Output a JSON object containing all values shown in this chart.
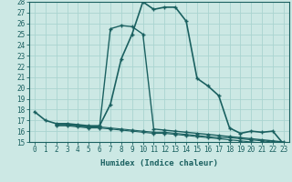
{
  "xlabel": "Humidex (Indice chaleur)",
  "bg_color": "#cce8e4",
  "grid_color": "#aad4d0",
  "line_color": "#1a6060",
  "xlim": [
    -0.5,
    23.5
  ],
  "ylim": [
    15,
    28
  ],
  "xticks": [
    0,
    1,
    2,
    3,
    4,
    5,
    6,
    7,
    8,
    9,
    10,
    11,
    12,
    13,
    14,
    15,
    16,
    17,
    18,
    19,
    20,
    21,
    22,
    23
  ],
  "yticks": [
    15,
    16,
    17,
    18,
    19,
    20,
    21,
    22,
    23,
    24,
    25,
    26,
    27,
    28
  ],
  "curve1_x": [
    0,
    1,
    2,
    3,
    4,
    5,
    6,
    7,
    8,
    9,
    10,
    11,
    12,
    13,
    14,
    15,
    16,
    17,
    18,
    19,
    20,
    21,
    22,
    23
  ],
  "curve1_y": [
    17.8,
    17.0,
    16.7,
    16.7,
    16.6,
    16.5,
    16.5,
    18.5,
    22.7,
    25.0,
    28.0,
    27.3,
    27.5,
    27.5,
    26.2,
    20.9,
    20.2,
    19.3,
    16.3,
    15.8,
    16.0,
    15.9,
    16.0,
    14.8
  ],
  "curve2_x": [
    2,
    3,
    4,
    5,
    6,
    7,
    8,
    9,
    10,
    11,
    12,
    13,
    14,
    15,
    16,
    17,
    18,
    19,
    20,
    21,
    22,
    23
  ],
  "curve2_y": [
    16.6,
    16.6,
    16.5,
    16.4,
    16.4,
    25.5,
    25.8,
    25.7,
    25.0,
    16.2,
    16.1,
    16.0,
    15.9,
    15.8,
    15.7,
    15.6,
    15.5,
    15.4,
    15.3,
    15.2,
    15.1,
    15.0
  ],
  "curve3_x": [
    2,
    3,
    4,
    5,
    6,
    7,
    8,
    9,
    10,
    11,
    12,
    13,
    14,
    15,
    16,
    17,
    18,
    19,
    20,
    21,
    22,
    23
  ],
  "curve3_y": [
    16.6,
    16.6,
    16.5,
    16.4,
    16.4,
    16.3,
    16.2,
    16.1,
    16.0,
    15.9,
    15.9,
    15.8,
    15.7,
    15.6,
    15.5,
    15.4,
    15.4,
    15.3,
    15.2,
    15.1,
    15.0,
    14.9
  ],
  "curve4_x": [
    2,
    3,
    4,
    5,
    6,
    7,
    8,
    9,
    10,
    11,
    12,
    13,
    14,
    15,
    16,
    17,
    18,
    19,
    20,
    21,
    22,
    23
  ],
  "curve4_y": [
    16.5,
    16.5,
    16.4,
    16.3,
    16.3,
    16.2,
    16.1,
    16.0,
    15.9,
    15.8,
    15.8,
    15.7,
    15.6,
    15.5,
    15.4,
    15.3,
    15.2,
    15.1,
    15.0,
    14.9,
    14.8,
    14.7
  ]
}
